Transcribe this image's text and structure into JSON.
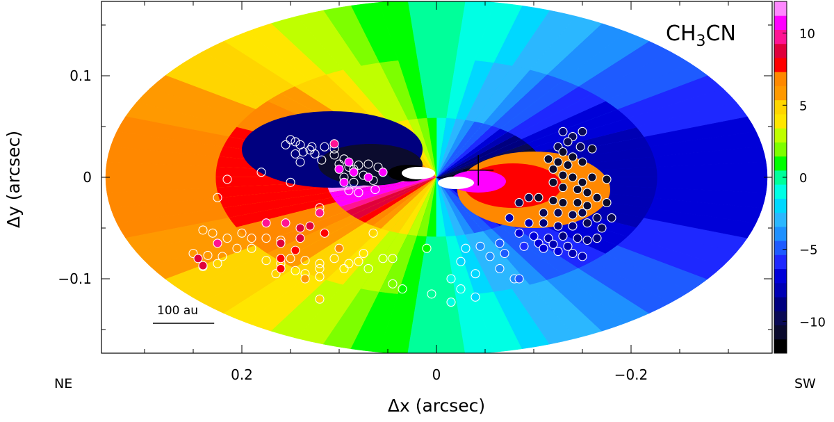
{
  "chart_data": {
    "type": "scatter",
    "title": "CH3CN",
    "title_parts": {
      "pre": "CH",
      "sub": "3",
      "post": "CN"
    },
    "xlabel": "Δx (arcsec)",
    "ylabel": "Δy (arcsec)",
    "xlim": [
      0.34,
      -0.34
    ],
    "ylim": [
      -0.175,
      0.175
    ],
    "x_ticks": [
      0.2,
      0,
      -0.2
    ],
    "x_ticklabels": [
      "0.2",
      "0",
      "−0.2"
    ],
    "y_ticks": [
      0.1,
      0,
      -0.1
    ],
    "y_ticklabels": [
      "0.1",
      "0",
      "−0.1"
    ],
    "orientation_labels": {
      "left": "NE",
      "right": "SW"
    },
    "scale_bar": {
      "label": "100 au",
      "length_arcsec": 0.063
    },
    "cross_marker": {
      "x": -0.043,
      "y": 0.007
    },
    "colorbar": {
      "ticks": [
        10,
        5,
        0,
        -5,
        -10
      ],
      "ticklabels": [
        "10",
        "5",
        "0",
        "−5",
        "−10"
      ],
      "range": [
        -12.2,
        12.2
      ],
      "bands": [
        "#000000",
        "#0b0b2e",
        "#0a0a55",
        "#00007f",
        "#0000b4",
        "#0000d8",
        "#1e28ff",
        "#1e5bff",
        "#1e90ff",
        "#2bb7ff",
        "#00d8ff",
        "#00ffe4",
        "#00ff9a",
        "#00ff00",
        "#7dff00",
        "#bfff00",
        "#ffe600",
        "#ffd500",
        "#ff9900",
        "#ff8800",
        "#ff0000",
        "#e0003c",
        "#ff1493",
        "#ff00ff",
        "#ff88ff"
      ]
    },
    "model_disk": {
      "semi_major_arcsec": 0.34,
      "semi_minor_arcsec": 0.175
    },
    "series": [
      {
        "marker": "open-circle",
        "points": [
          [
            0.155,
            0.032
          ],
          [
            0.15,
            0.037
          ],
          [
            0.145,
            0.035
          ],
          [
            0.14,
            0.032
          ],
          [
            0.137,
            0.025
          ],
          [
            0.13,
            0.027
          ],
          [
            0.125,
            0.023
          ],
          [
            0.118,
            0.017
          ],
          [
            0.105,
            0.022
          ],
          [
            0.1,
            0.013
          ],
          [
            0.095,
            0.018
          ],
          [
            0.09,
            0.01
          ],
          [
            0.085,
            0.008
          ],
          [
            0.08,
            0.012
          ],
          [
            0.075,
            0.002
          ],
          [
            0.07,
            0.013
          ],
          [
            0.06,
            0.01
          ],
          [
            0.065,
            -0.003
          ],
          [
            0.085,
            -0.005
          ],
          [
            0.09,
            -0.013
          ],
          [
            0.095,
            0.0
          ],
          [
            0.14,
            0.015
          ],
          [
            0.18,
            0.005
          ],
          [
            0.215,
            -0.002
          ],
          [
            0.225,
            -0.02
          ],
          [
            0.15,
            -0.005
          ],
          [
            0.12,
            -0.03
          ],
          [
            0.24,
            -0.052
          ],
          [
            0.23,
            -0.055
          ],
          [
            0.215,
            -0.06
          ],
          [
            0.2,
            -0.055
          ],
          [
            0.19,
            -0.06
          ],
          [
            0.175,
            -0.06
          ],
          [
            0.16,
            -0.062
          ],
          [
            0.25,
            -0.075
          ],
          [
            0.235,
            -0.077
          ],
          [
            0.22,
            -0.078
          ],
          [
            0.205,
            -0.07
          ],
          [
            0.19,
            -0.07
          ],
          [
            0.175,
            -0.082
          ],
          [
            0.16,
            -0.085
          ],
          [
            0.15,
            -0.08
          ],
          [
            0.135,
            -0.082
          ],
          [
            0.12,
            -0.085
          ],
          [
            0.105,
            -0.08
          ],
          [
            0.09,
            -0.085
          ],
          [
            0.08,
            -0.083
          ],
          [
            0.07,
            -0.09
          ],
          [
            0.165,
            -0.095
          ],
          [
            0.145,
            -0.092
          ],
          [
            0.12,
            -0.098
          ],
          [
            0.095,
            -0.09
          ],
          [
            0.075,
            -0.075
          ],
          [
            0.055,
            -0.08
          ],
          [
            0.045,
            -0.08
          ],
          [
            0.045,
            -0.105
          ],
          [
            0.035,
            -0.11
          ],
          [
            0.225,
            -0.085
          ],
          [
            0.24,
            -0.088
          ],
          [
            0.12,
            -0.09
          ],
          [
            0.135,
            -0.095
          ],
          [
            0.065,
            -0.055
          ],
          [
            0.115,
            0.03
          ],
          [
            0.128,
            0.03
          ],
          [
            0.105,
            0.028
          ],
          [
            0.145,
            0.023
          ]
        ]
      },
      {
        "marker": "filled-circle",
        "points": [
          [
            -0.13,
            0.045
          ],
          [
            -0.14,
            0.04
          ],
          [
            -0.15,
            0.045
          ],
          [
            -0.125,
            0.03
          ],
          [
            -0.135,
            0.035
          ],
          [
            -0.148,
            0.03
          ],
          [
            -0.16,
            0.028
          ],
          [
            -0.13,
            0.025
          ],
          [
            -0.14,
            0.02
          ],
          [
            -0.15,
            0.015
          ],
          [
            -0.135,
            0.012
          ],
          [
            -0.125,
            0.015
          ],
          [
            -0.115,
            0.018
          ],
          [
            -0.12,
            0.008
          ],
          [
            -0.13,
            0.002
          ],
          [
            -0.14,
            0.0
          ],
          [
            -0.15,
            -0.005
          ],
          [
            -0.16,
            0.0
          ],
          [
            -0.175,
            -0.002
          ],
          [
            -0.12,
            -0.005
          ],
          [
            -0.13,
            -0.01
          ],
          [
            -0.145,
            -0.012
          ],
          [
            -0.155,
            -0.015
          ],
          [
            -0.165,
            -0.02
          ],
          [
            -0.105,
            -0.02
          ],
          [
            -0.12,
            -0.023
          ],
          [
            -0.13,
            -0.025
          ],
          [
            -0.145,
            -0.025
          ],
          [
            -0.155,
            -0.028
          ],
          [
            -0.175,
            -0.025
          ],
          [
            -0.11,
            -0.035
          ],
          [
            -0.125,
            -0.035
          ],
          [
            -0.14,
            -0.037
          ],
          [
            -0.15,
            -0.035
          ],
          [
            -0.165,
            -0.04
          ],
          [
            -0.18,
            -0.04
          ],
          [
            -0.095,
            -0.045
          ],
          [
            -0.11,
            -0.045
          ],
          [
            -0.125,
            -0.048
          ],
          [
            -0.14,
            -0.048
          ],
          [
            -0.155,
            -0.045
          ],
          [
            -0.17,
            -0.05
          ],
          [
            -0.075,
            -0.04
          ],
          [
            -0.085,
            -0.055
          ],
          [
            -0.1,
            -0.058
          ],
          [
            -0.115,
            -0.06
          ],
          [
            -0.13,
            -0.058
          ],
          [
            -0.145,
            -0.06
          ],
          [
            -0.155,
            -0.062
          ],
          [
            -0.165,
            -0.06
          ],
          [
            -0.105,
            -0.065
          ],
          [
            -0.12,
            -0.066
          ],
          [
            -0.135,
            -0.068
          ],
          [
            -0.09,
            -0.068
          ],
          [
            -0.14,
            -0.075
          ],
          [
            -0.125,
            -0.073
          ],
          [
            -0.15,
            -0.078
          ],
          [
            -0.07,
            -0.075
          ],
          [
            -0.065,
            -0.065
          ],
          [
            -0.045,
            -0.068
          ],
          [
            -0.03,
            -0.07
          ],
          [
            -0.055,
            -0.078
          ],
          [
            -0.065,
            -0.09
          ],
          [
            -0.025,
            -0.083
          ],
          [
            -0.04,
            -0.095
          ],
          [
            -0.015,
            -0.1
          ],
          [
            -0.08,
            -0.1
          ],
          [
            -0.085,
            -0.1
          ],
          [
            0.005,
            -0.115
          ],
          [
            -0.025,
            -0.11
          ],
          [
            -0.04,
            -0.118
          ],
          [
            -0.015,
            -0.123
          ],
          [
            0.01,
            -0.07
          ],
          [
            -0.11,
            -0.07
          ],
          [
            -0.095,
            -0.02
          ],
          [
            -0.085,
            -0.025
          ],
          [
            0.14,
            -0.06
          ],
          [
            0.115,
            -0.055
          ],
          [
            0.16,
            -0.065
          ],
          [
            0.13,
            -0.048
          ],
          [
            0.155,
            -0.045
          ],
          [
            0.175,
            -0.045
          ],
          [
            0.145,
            -0.072
          ],
          [
            0.16,
            -0.08
          ],
          [
            0.225,
            -0.065
          ],
          [
            0.245,
            -0.08
          ],
          [
            0.24,
            -0.087
          ],
          [
            0.12,
            -0.035
          ],
          [
            0.14,
            -0.05
          ],
          [
            0.1,
            -0.07
          ],
          [
            0.16,
            -0.09
          ],
          [
            0.135,
            -0.1
          ],
          [
            0.12,
            -0.12
          ],
          [
            0.095,
            -0.005
          ],
          [
            0.085,
            0.005
          ],
          [
            0.07,
            0.0
          ],
          [
            0.105,
            0.033
          ],
          [
            0.063,
            -0.012
          ],
          [
            0.08,
            -0.015
          ],
          [
            0.1,
            0.008
          ],
          [
            0.055,
            0.005
          ],
          [
            0.09,
            0.015
          ]
        ]
      }
    ]
  }
}
